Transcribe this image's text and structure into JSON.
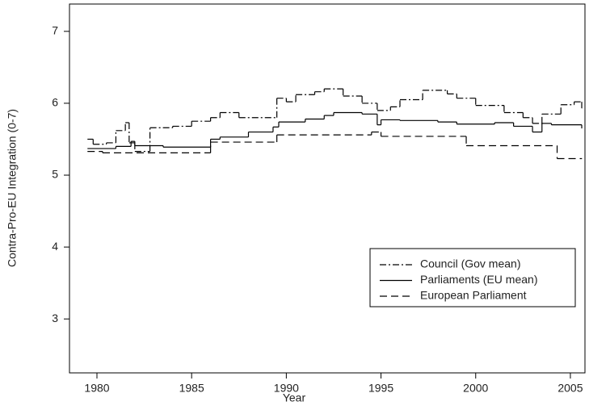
{
  "chart_data": {
    "type": "line",
    "step": true,
    "xlabel": "Year",
    "ylabel": "Contra-Pro-EU Integration (0-7)",
    "xlim": [
      1978.55,
      2005.77
    ],
    "ylim": [
      2.25,
      7.38
    ],
    "xticks": [
      1980,
      1985,
      1990,
      1995,
      2000,
      2005
    ],
    "yticks": [
      3,
      4,
      5,
      6,
      7
    ],
    "legend": "bottom-right",
    "series": [
      {
        "name": "Council (Gov mean)",
        "color": "#000000",
        "dash": "dashdot",
        "x": [
          1979.5,
          1979.8,
          1980.5,
          1981,
          1981.5,
          1981.7,
          1982,
          1982.8,
          1984,
          1985,
          1986,
          1986.5,
          1987.5,
          1989.5,
          1990,
          1990.5,
          1991.5,
          1992,
          1993,
          1994,
          1994.8,
          1995.5,
          1996,
          1997.2,
          1998.5,
          1999,
          2000,
          2001.5,
          2002.5,
          2003,
          2003.5,
          2004.5,
          2005.2,
          2005.6
        ],
        "values": [
          5.5,
          5.43,
          5.45,
          5.62,
          5.73,
          5.45,
          5.33,
          5.66,
          5.68,
          5.75,
          5.8,
          5.87,
          5.8,
          6.07,
          6.02,
          6.12,
          6.16,
          6.2,
          6.1,
          6.0,
          5.9,
          5.95,
          6.05,
          6.18,
          6.13,
          6.07,
          5.97,
          5.87,
          5.8,
          5.72,
          5.85,
          5.98,
          6.02,
          5.93
        ]
      },
      {
        "name": "Parliaments (EU mean)",
        "color": "#000000",
        "dash": "solid",
        "x": [
          1979.5,
          1981,
          1981.8,
          1982,
          1983.5,
          1986,
          1986.5,
          1988,
          1989.3,
          1989.6,
          1991,
          1992,
          1992.5,
          1994,
          1994.8,
          1995,
          1996,
          1998,
          1999,
          2001,
          2002,
          2003,
          2003.5,
          2004,
          2005.6
        ],
        "values": [
          5.37,
          5.4,
          5.47,
          5.41,
          5.39,
          5.5,
          5.53,
          5.6,
          5.67,
          5.74,
          5.78,
          5.83,
          5.87,
          5.85,
          5.7,
          5.77,
          5.76,
          5.74,
          5.71,
          5.73,
          5.68,
          5.6,
          5.72,
          5.7,
          5.65
        ]
      },
      {
        "name": "European Parliament",
        "color": "#000000",
        "dash": "dashed",
        "x": [
          1979.5,
          1980.3,
          1986,
          1989.5,
          1994.5,
          1995,
          1999.5,
          2004.3,
          2005.6
        ],
        "values": [
          5.33,
          5.31,
          5.46,
          5.56,
          5.6,
          5.54,
          5.41,
          5.23,
          5.23
        ]
      }
    ]
  }
}
